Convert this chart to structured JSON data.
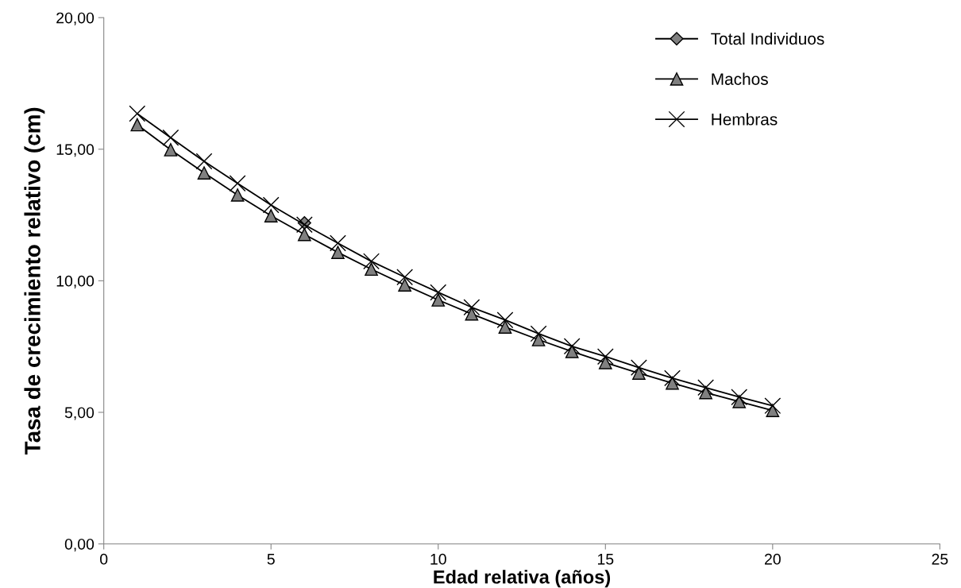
{
  "chart_data": {
    "type": "line",
    "xlabel": "Edad relativa (años)",
    "ylabel": "Tasa de crecimiento relativo (cm)",
    "x": [
      1,
      2,
      3,
      4,
      5,
      6,
      7,
      8,
      9,
      10,
      11,
      12,
      13,
      14,
      15,
      16,
      17,
      18,
      19,
      20
    ],
    "xlim": [
      0,
      25
    ],
    "xticks": [
      0,
      5,
      10,
      15,
      20,
      25
    ],
    "ylim": [
      0,
      20
    ],
    "yticks": [
      {
        "value": 0,
        "label": "0,00"
      },
      {
        "value": 5,
        "label": "5,00"
      },
      {
        "value": 10,
        "label": "10,00"
      },
      {
        "value": 15,
        "label": "15,00"
      },
      {
        "value": 20,
        "label": "20,00"
      }
    ],
    "grid": false,
    "legend": "top right",
    "series": [
      {
        "name": "Total Individuos",
        "color": "#808080",
        "marker": "diamond",
        "values": [
          null,
          null,
          null,
          null,
          null,
          12.2,
          null,
          null,
          null,
          null,
          null,
          null,
          null,
          null,
          null,
          null,
          null,
          null,
          null,
          null
        ]
      },
      {
        "name": "Machos",
        "color": "#808080",
        "marker": "triangle",
        "values": [
          15.93,
          14.98,
          14.1,
          13.26,
          12.47,
          11.76,
          11.08,
          10.44,
          9.84,
          9.27,
          8.74,
          8.24,
          7.76,
          7.31,
          6.89,
          6.49,
          6.11,
          5.75,
          5.41,
          5.07
        ]
      },
      {
        "name": "Hembras",
        "color": "#000000",
        "marker": "cross",
        "values": [
          16.35,
          15.44,
          14.54,
          13.7,
          12.88,
          12.13,
          11.43,
          10.74,
          10.14,
          9.56,
          8.99,
          8.51,
          7.99,
          7.51,
          7.12,
          6.7,
          6.3,
          5.94,
          5.58,
          5.25
        ]
      }
    ]
  }
}
